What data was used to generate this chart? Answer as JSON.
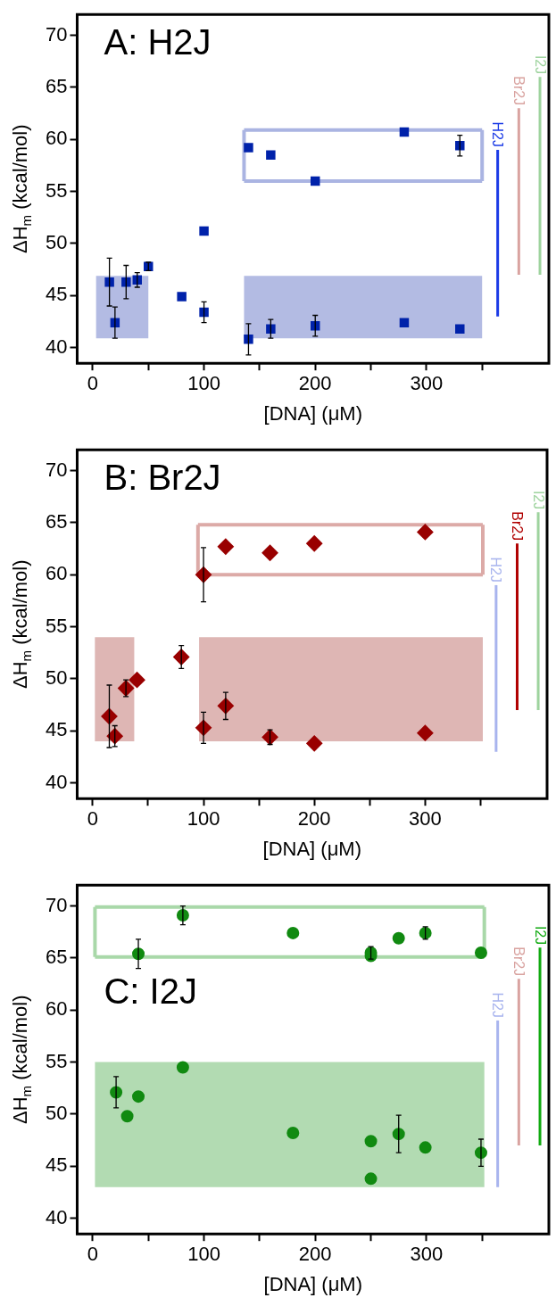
{
  "chart_data": [
    {
      "type": "scatter",
      "title": "A: H2J",
      "xlabel": "[DNA] (μM)",
      "ylabel": "ΔH$_{m}$ (kcal/mol)",
      "xlim": [
        -14,
        410
      ],
      "ylim": [
        38.5,
        72
      ],
      "xticks": [
        0,
        {
          "value": 50,
          "label": null
        },
        100,
        {
          "value": 150,
          "label": null
        },
        200,
        {
          "value": 250,
          "label": null
        },
        300,
        {
          "value": 350,
          "label": null
        }
      ],
      "yticks": [
        40,
        45,
        50,
        55,
        60,
        65,
        70
      ],
      "grid": false,
      "legend": "right",
      "series": [
        {
          "type": "area",
          "color": "#b3bbe3",
          "x": [
            3,
            50,
            50,
            3,
            3
          ],
          "values": [
            40.9,
            40.9,
            46.9,
            46.9,
            40.9
          ]
        },
        {
          "type": "area",
          "color": "#b3bbe3",
          "x": [
            136,
            350,
            350,
            136,
            136
          ],
          "values": [
            40.9,
            40.9,
            46.9,
            46.9,
            40.9
          ]
        },
        {
          "type": "line",
          "color": "#aab4e2",
          "x": [
            136,
            350
          ],
          "values": [
            56,
            56
          ]
        },
        {
          "type": "line",
          "color": "#aab4e2",
          "x": [
            136,
            350
          ],
          "values": [
            60.9,
            60.9
          ]
        },
        {
          "type": "line",
          "color": "#aab4e2",
          "x": [
            136,
            136
          ],
          "values": [
            56,
            60.9
          ]
        },
        {
          "type": "line",
          "color": "#aab4e2",
          "x": [
            350,
            350
          ],
          "values": [
            56,
            60.9
          ]
        },
        {
          "color": "#0022aa",
          "marker": "square",
          "x": [
            15,
            20,
            30,
            40,
            50,
            80
          ],
          "values": [
            46.3,
            42.4,
            46.3,
            46.5,
            47.8,
            44.9
          ],
          "errors": [
            2.3,
            1.5,
            1.6,
            0.7,
            0.4,
            null
          ]
        },
        {
          "color": "#0022aa",
          "marker": "square",
          "x": [
            100,
            100,
            140,
            140,
            160,
            160,
            200,
            200,
            280,
            280,
            330,
            330
          ],
          "values": [
            51.2,
            43.4,
            59.2,
            40.8,
            58.5,
            41.8,
            56.0,
            42.1,
            60.7,
            42.4,
            59.4,
            41.8
          ],
          "errors": [
            null,
            1.0,
            null,
            1.5,
            null,
            0.9,
            null,
            1.0,
            null,
            null,
            1.0,
            null
          ]
        },
        {
          "type": "line",
          "name": "H2J",
          "color": "#1a3ae6",
          "marker": "none",
          "x": [
            364,
            364
          ],
          "values": [
            43,
            59
          ]
        },
        {
          "type": "line",
          "name": "Br2J",
          "color": "#d9a3a0",
          "marker": "none",
          "x": [
            383,
            383
          ],
          "values": [
            47,
            63
          ]
        },
        {
          "type": "line",
          "name": "I2J",
          "color": "#9ed39e",
          "marker": "none",
          "x": [
            402,
            402
          ],
          "values": [
            47,
            66
          ]
        }
      ]
    },
    {
      "type": "scatter",
      "title": "B: Br2J",
      "xlabel": "[DNA] (μM)",
      "ylabel": "ΔH$_{m}$ (kcal/mol)",
      "xlim": [
        -14,
        410
      ],
      "ylim": [
        38.5,
        72
      ],
      "xticks": [
        0,
        {
          "value": 50,
          "label": null
        },
        100,
        {
          "value": 150,
          "label": null
        },
        200,
        {
          "value": 250,
          "label": null
        },
        300,
        {
          "value": 350,
          "label": null
        }
      ],
      "yticks": [
        40,
        45,
        50,
        55,
        60,
        65,
        70
      ],
      "grid": false,
      "legend": "right",
      "series": [
        {
          "type": "area",
          "color": "#deb6b4",
          "x": [
            2,
            37.5,
            37.5,
            2,
            2
          ],
          "values": [
            44,
            44,
            54,
            54,
            44
          ]
        },
        {
          "type": "area",
          "color": "#deb6b4",
          "x": [
            96,
            352,
            352,
            96,
            96
          ],
          "values": [
            44,
            44,
            54,
            54,
            44
          ]
        },
        {
          "type": "line",
          "color": "#dcaaa7",
          "x": [
            95,
            352
          ],
          "values": [
            60,
            60
          ]
        },
        {
          "type": "line",
          "color": "#dcaaa7",
          "x": [
            95,
            352
          ],
          "values": [
            64.8,
            64.8
          ]
        },
        {
          "type": "line",
          "color": "#dcaaa7",
          "x": [
            95,
            95
          ],
          "values": [
            60,
            64.8
          ]
        },
        {
          "type": "line",
          "color": "#dcaaa7",
          "x": [
            352,
            352
          ],
          "values": [
            60,
            64.8
          ]
        },
        {
          "color": "#990000",
          "marker": "diamond",
          "x": [
            15,
            20,
            30,
            40,
            80
          ],
          "values": [
            46.4,
            44.5,
            49.1,
            49.9,
            52.1
          ],
          "errors": [
            3.0,
            1.0,
            0.8,
            null,
            1.1
          ]
        },
        {
          "color": "#990000",
          "marker": "diamond",
          "x": [
            100,
            100,
            120,
            120,
            160,
            160,
            200,
            200,
            300,
            300
          ],
          "values": [
            60.0,
            45.3,
            62.7,
            47.4,
            62.1,
            44.4,
            63.0,
            43.8,
            64.1,
            44.8
          ],
          "errors": [
            2.6,
            1.5,
            null,
            1.3,
            null,
            0.7,
            null,
            null,
            null,
            null
          ]
        },
        {
          "type": "line",
          "name": "H2J",
          "color": "#a8b4ee",
          "marker": "none",
          "x": [
            364,
            364
          ],
          "values": [
            43,
            59
          ]
        },
        {
          "type": "line",
          "name": "Br2J",
          "color": "#b00000",
          "marker": "none",
          "x": [
            383,
            383
          ],
          "values": [
            47,
            63
          ]
        },
        {
          "type": "line",
          "name": "I2J",
          "color": "#9ed39e",
          "marker": "none",
          "x": [
            402,
            402
          ],
          "values": [
            47,
            66
          ]
        }
      ]
    },
    {
      "type": "scatter",
      "title": "C: I2J",
      "xlabel": "[DNA] (μM)",
      "ylabel": "ΔH$_{m}$ (kcal/mol)",
      "xlim": [
        -14,
        410
      ],
      "ylim": [
        38.5,
        72
      ],
      "xticks": [
        0,
        {
          "value": 50,
          "label": null
        },
        100,
        {
          "value": 150,
          "label": null
        },
        200,
        {
          "value": 250,
          "label": null
        },
        300,
        {
          "value": 350,
          "label": null
        }
      ],
      "yticks": [
        40,
        45,
        50,
        55,
        60,
        65,
        70
      ],
      "grid": false,
      "legend": "right",
      "series": [
        {
          "type": "area",
          "color": "#b2dbb2",
          "x": [
            2,
            352,
            352,
            2,
            2
          ],
          "values": [
            43,
            43,
            55,
            55,
            43
          ]
        },
        {
          "type": "line",
          "color": "#a9d8a9",
          "x": [
            2,
            352
          ],
          "values": [
            65.1,
            65.1
          ]
        },
        {
          "type": "line",
          "color": "#a9d8a9",
          "x": [
            2,
            352
          ],
          "values": [
            69.9,
            69.9
          ]
        },
        {
          "type": "line",
          "color": "#a9d8a9",
          "x": [
            2,
            2
          ],
          "values": [
            65.1,
            69.9
          ]
        },
        {
          "type": "line",
          "color": "#a9d8a9",
          "x": [
            352,
            352
          ],
          "values": [
            65.1,
            69.9
          ]
        },
        {
          "color": "#118a11",
          "marker": "circle",
          "x": [
            21,
            31
          ],
          "values": [
            52.1,
            49.8
          ],
          "errors": [
            1.5,
            null
          ]
        },
        {
          "color": "#118a11",
          "marker": "circle",
          "x": [
            41,
            81,
            180,
            250,
            250,
            275,
            299,
            349,
            41,
            81,
            180,
            250,
            275,
            299,
            349,
            250
          ],
          "values": [
            65.4,
            69.1,
            67.4,
            65.5,
            65.2,
            66.9,
            67.4,
            65.5,
            51.7,
            54.5,
            48.2,
            47.4,
            48.1,
            46.8,
            46.3,
            43.8
          ],
          "errors": [
            1.4,
            0.9,
            null,
            0.6,
            null,
            null,
            0.6,
            null,
            null,
            null,
            null,
            null,
            1.8,
            null,
            1.3,
            null
          ]
        },
        {
          "type": "line",
          "name": "H2J",
          "color": "#a8b4ee",
          "marker": "none",
          "x": [
            364,
            364
          ],
          "values": [
            43,
            59
          ]
        },
        {
          "type": "line",
          "name": "Br2J",
          "color": "#d9a3a0",
          "marker": "none",
          "x": [
            383,
            383
          ],
          "values": [
            47,
            63
          ]
        },
        {
          "type": "line",
          "name": "I2J",
          "color": "#11aa11",
          "marker": "none",
          "x": [
            402,
            402
          ],
          "values": [
            47,
            66
          ]
        }
      ]
    }
  ]
}
